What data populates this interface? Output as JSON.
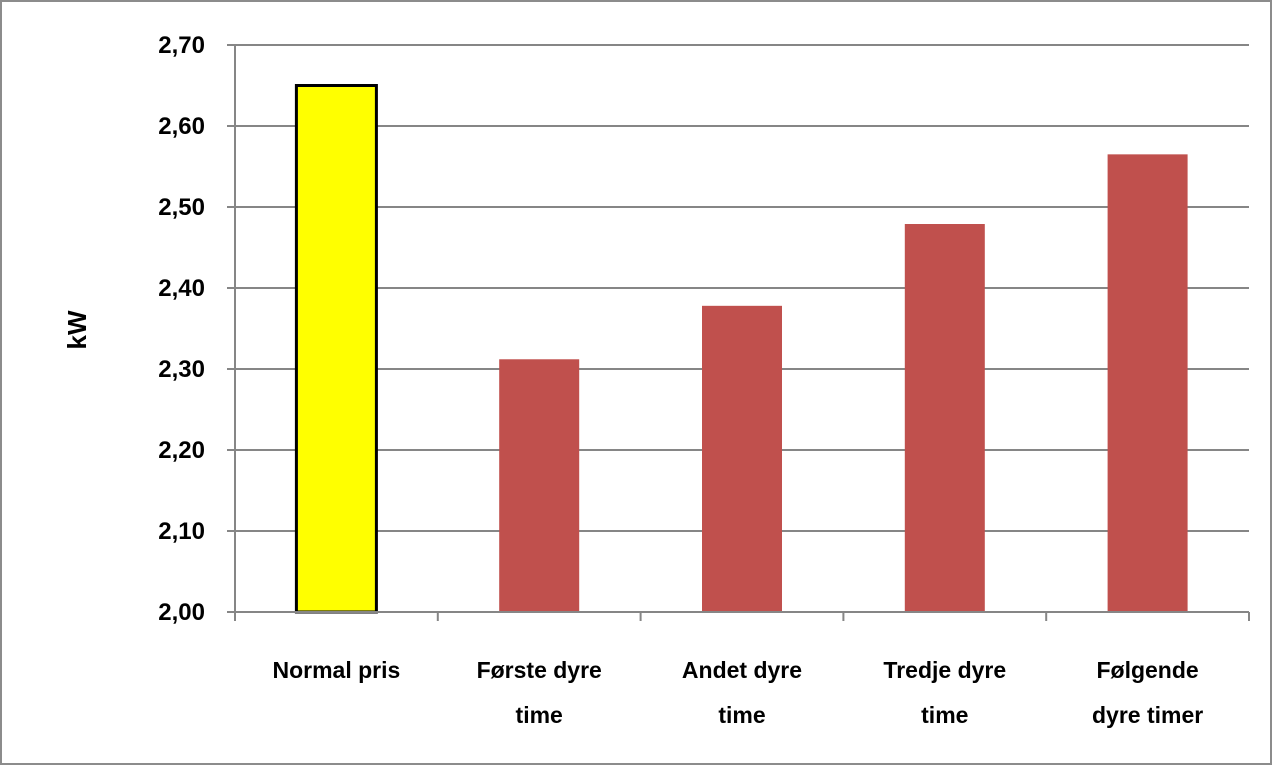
{
  "chart_data": {
    "type": "bar",
    "title": "",
    "xlabel": "",
    "ylabel": "kW",
    "ylim": [
      2.0,
      2.7
    ],
    "y_ticks": [
      "2,00",
      "2,10",
      "2,20",
      "2,30",
      "2,40",
      "2,50",
      "2,60",
      "2,70"
    ],
    "grid": true,
    "legend": "none",
    "categories": [
      [
        "Normal pris"
      ],
      [
        "Første dyre",
        "time"
      ],
      [
        "Andet dyre",
        "time"
      ],
      [
        "Tredje dyre",
        "time"
      ],
      [
        "Følgende",
        "dyre timer"
      ]
    ],
    "values": [
      2.65,
      2.312,
      2.378,
      2.479,
      2.565
    ],
    "bar_colors": [
      "#ffff00",
      "#c0504d",
      "#c0504d",
      "#c0504d",
      "#c0504d"
    ],
    "highlight_outline_color": "#000000",
    "highlight_index": 0
  }
}
